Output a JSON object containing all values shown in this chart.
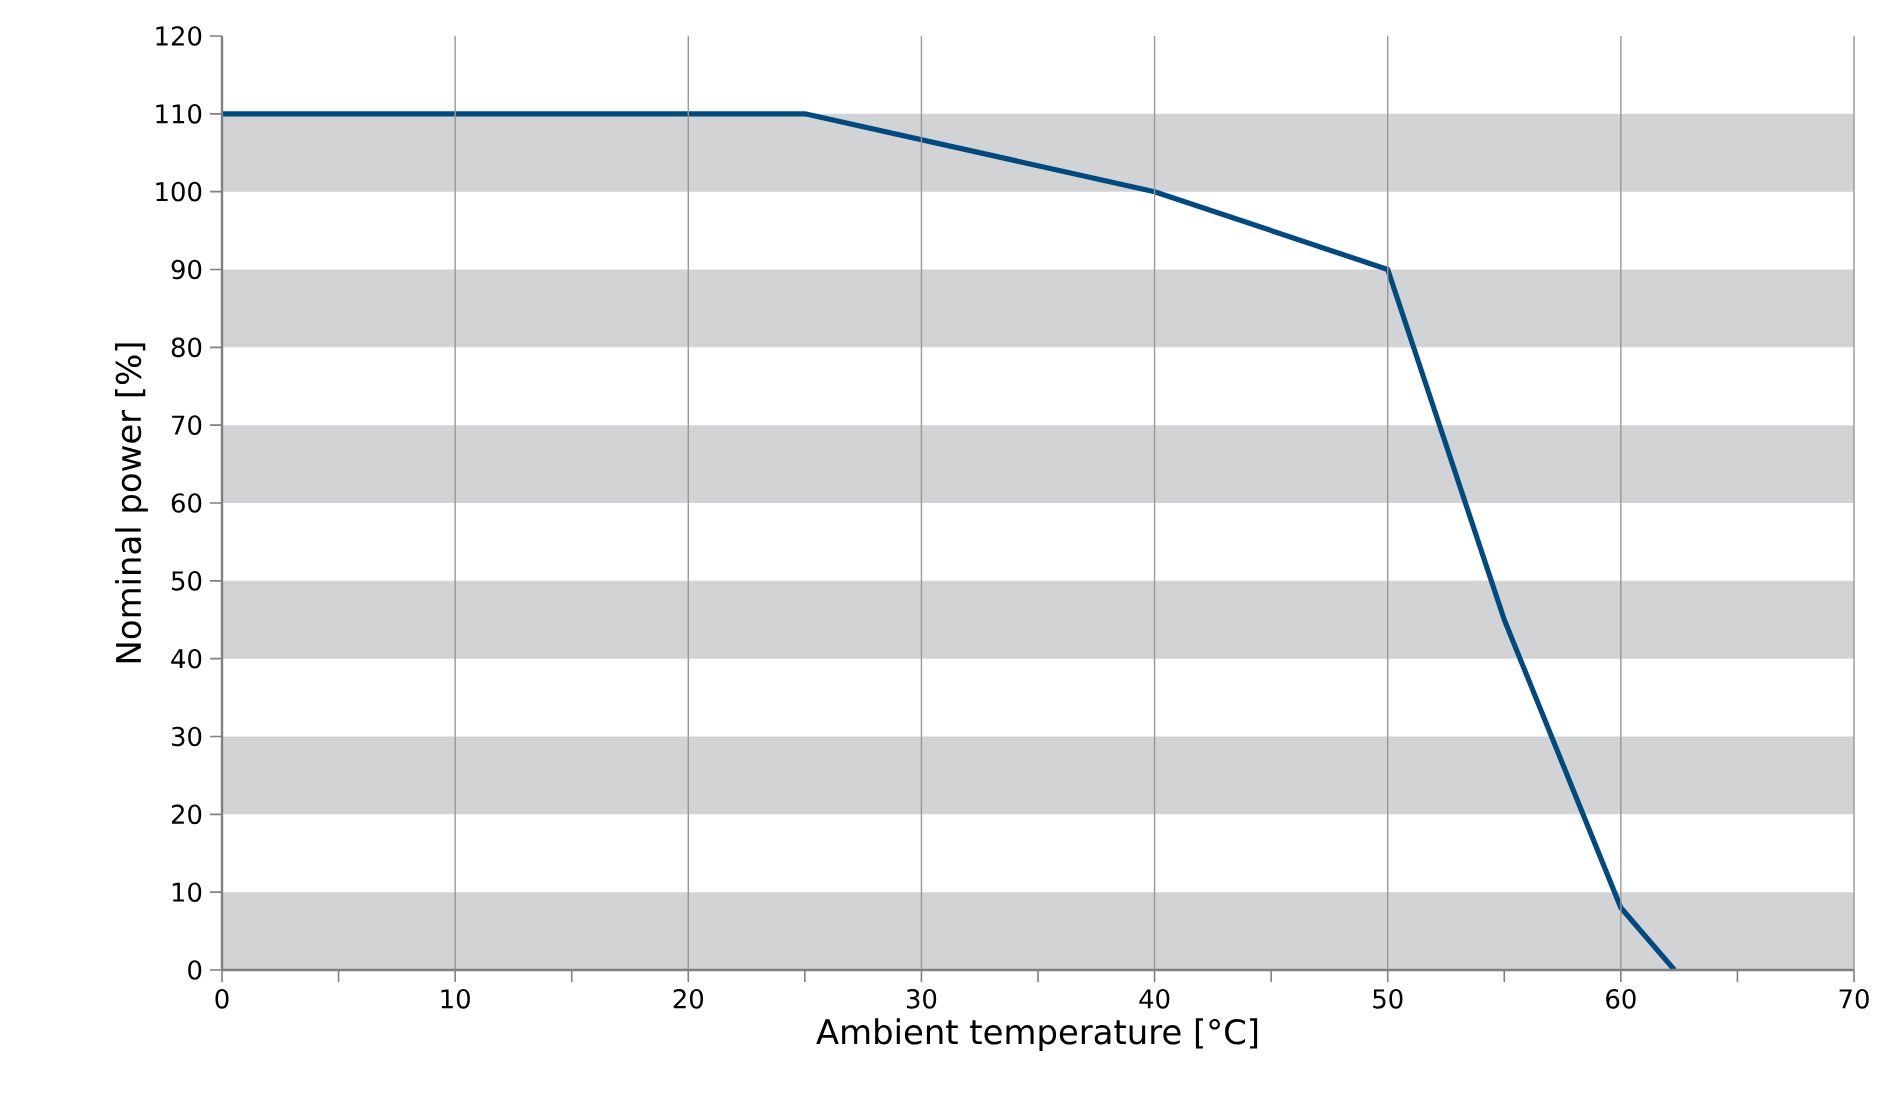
{
  "chart_data": {
    "type": "line",
    "xlabel": "Ambient temperature [°C]",
    "ylabel": "Nominal power [%]",
    "x": [
      0,
      25,
      40,
      50,
      55,
      60,
      62.3
    ],
    "series": [
      {
        "color": "#004a80",
        "values": [
          110,
          110,
          100,
          90,
          45,
          8,
          0
        ]
      }
    ],
    "xlim": [
      0,
      70
    ],
    "ylim": [
      0,
      120
    ],
    "xticks": [
      0,
      10,
      20,
      30,
      40,
      50,
      60,
      70
    ],
    "yticks": [
      0,
      10,
      20,
      30,
      40,
      50,
      60,
      70,
      80,
      90,
      100,
      110,
      120
    ],
    "grid": "x",
    "marker": "none",
    "line_style": "solid",
    "bands": [
      {
        "axis": "y",
        "from": 0,
        "to": 10,
        "color": "#d1d3d4"
      },
      {
        "axis": "y",
        "from": 20,
        "to": 30,
        "color": "#d1d3d4"
      },
      {
        "axis": "y",
        "from": 40,
        "to": 50,
        "color": "#d1d3d4"
      },
      {
        "axis": "y",
        "from": 60,
        "to": 70,
        "color": "#d1d3d4"
      },
      {
        "axis": "y",
        "from": 80,
        "to": 90,
        "color": "#d1d3d4"
      },
      {
        "axis": "y",
        "from": 100,
        "to": 110,
        "color": "#d1d3d4"
      }
    ]
  }
}
